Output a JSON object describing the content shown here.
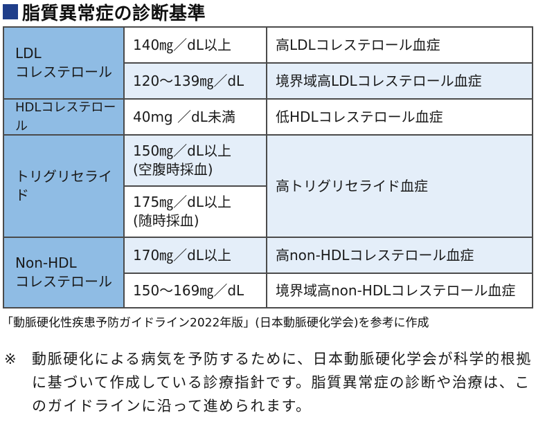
{
  "title": "脂質異常症の診断基準",
  "table": {
    "groups": [
      {
        "label": "LDL\nコレステロール",
        "rows": [
          {
            "criterion": "140㎎／dL以上",
            "diagnosis": "高LDLコレステロール血症"
          },
          {
            "criterion": "120〜139㎎／dL",
            "diagnosis": "境界域高LDLコレステロール血症"
          }
        ]
      },
      {
        "label": "HDLコレステロール",
        "rows": [
          {
            "criterion": "40mg ／dL未満",
            "diagnosis": "低HDLコレステロール血症"
          }
        ]
      },
      {
        "label": "トリグリセライド",
        "rows": [
          {
            "criterion": "150㎎／dL以上\n(空腹時採血)"
          },
          {
            "criterion": "175㎎／dL以上\n(随時採血)"
          }
        ],
        "diagnosis": "高トリグリセライド血症"
      },
      {
        "label": "Non-HDL\nコレステロール",
        "rows": [
          {
            "criterion": "170㎎／dL以上",
            "diagnosis": "高non-HDLコレステロール血症"
          },
          {
            "criterion": "150〜169㎎／dL",
            "diagnosis": "境界域高non-HDLコレステロール血症"
          }
        ]
      }
    ]
  },
  "source": "「動脈硬化性疾患予防ガイドライン2022年版」(日本動脈硬化学会)を参考に作成",
  "note": {
    "mark": "※",
    "text": "動脈硬化による病気を予防するために、日本動脈硬化学会が科学的根拠に基づいて作成している診療指針です。脂質異常症の診断や治療は、このガイドラインに沿って進められます。"
  },
  "colors": {
    "title_square": "#1f3e8a",
    "header_cell": "#8fbce4",
    "alt_row": "#e4eef9",
    "border": "#4a4a4a"
  }
}
